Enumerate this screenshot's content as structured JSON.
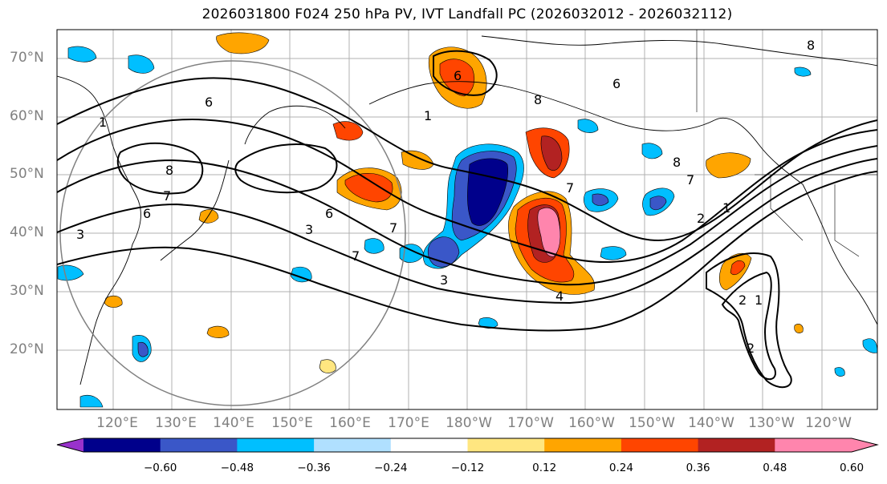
{
  "title": "2026031800 F024 250 hPa PV, IVT Landfall PC (2026032012 - 2026032112)",
  "lat_labels": [
    "70°N",
    "60°N",
    "50°N",
    "40°N",
    "30°N",
    "20°N"
  ],
  "lon_labels": [
    "120°E",
    "130°E",
    "140°E",
    "150°E",
    "160°E",
    "170°E",
    "180°W",
    "170°W",
    "160°W",
    "150°W",
    "140°W",
    "130°W",
    "120°W"
  ],
  "colorbar": {
    "colors": [
      "#9932cc",
      "#00008b",
      "#3a57c8",
      "#00bfff",
      "#b0e0ff",
      "#ffffff",
      "#ffe680",
      "#ffa500",
      "#ff4500",
      "#b22222",
      "#ff85ad",
      "#ff85ad"
    ],
    "tick_labels": [
      "−0.60",
      "−0.48",
      "−0.36",
      "−0.24",
      "−0.12",
      "0.12",
      "0.24",
      "0.36",
      "0.48",
      "0.60"
    ]
  },
  "contour_labels": [
    "6",
    "6",
    "7",
    "6",
    "7",
    "8",
    "6",
    "6",
    "7",
    "7",
    "8",
    "2",
    "2",
    "1",
    "3",
    "1",
    "8",
    "7",
    "4",
    "2",
    "1",
    "3",
    "3",
    "1",
    "8"
  ]
}
